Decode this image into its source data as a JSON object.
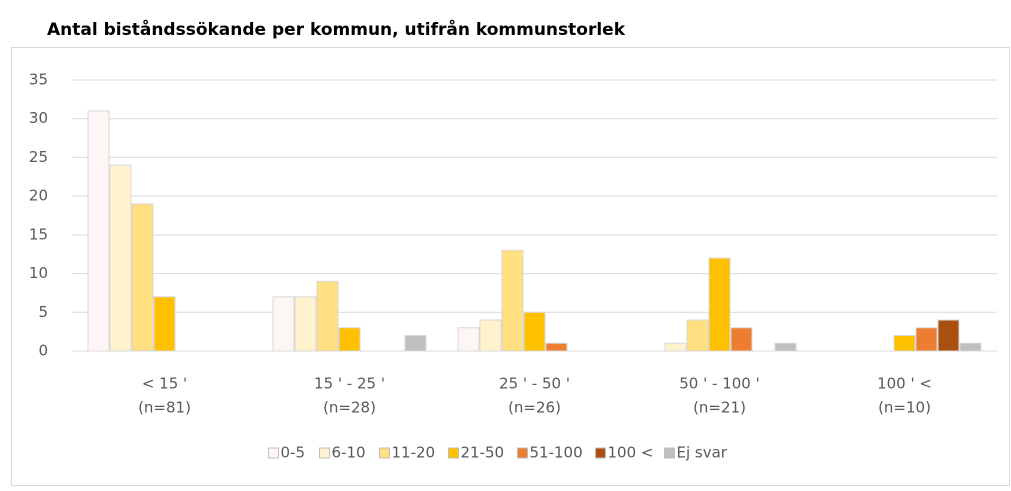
{
  "chart_data": {
    "type": "bar",
    "title": "Antal biståndssökande per kommun, utifrån kommunstorlek",
    "categories": [
      [
        "< 15 '",
        "(n=81)"
      ],
      [
        "15 ' - 25 '",
        "(n=28)"
      ],
      [
        "25 ' - 50 '",
        "(n=26)"
      ],
      [
        "50 ' - 100 '",
        "(n=21)"
      ],
      [
        "100 ' <",
        "(n=10)"
      ]
    ],
    "series": [
      {
        "name": "0-5",
        "color": "#fdf6f4",
        "values": [
          31,
          7,
          3,
          0,
          0
        ]
      },
      {
        "name": "6-10",
        "color": "#fff2cc",
        "values": [
          24,
          7,
          4,
          1,
          0
        ]
      },
      {
        "name": "11-20",
        "color": "#ffdf80",
        "values": [
          19,
          9,
          13,
          4,
          0
        ]
      },
      {
        "name": "21-50",
        "color": "#ffc000",
        "values": [
          7,
          3,
          5,
          12,
          2
        ]
      },
      {
        "name": "51-100",
        "color": "#ed7d31",
        "values": [
          0,
          0,
          1,
          3,
          3
        ]
      },
      {
        "name": "100 <",
        "color": "#a9500f",
        "values": [
          0,
          0,
          0,
          0,
          4
        ]
      },
      {
        "name": "Ej svar",
        "color": "#bfbfbf",
        "values": [
          0,
          2,
          0,
          1,
          1
        ]
      }
    ],
    "ylim": [
      0,
      35
    ],
    "yticks": [
      0,
      5,
      10,
      15,
      20,
      25,
      30,
      35
    ],
    "grid": true,
    "legend": "bottom"
  }
}
